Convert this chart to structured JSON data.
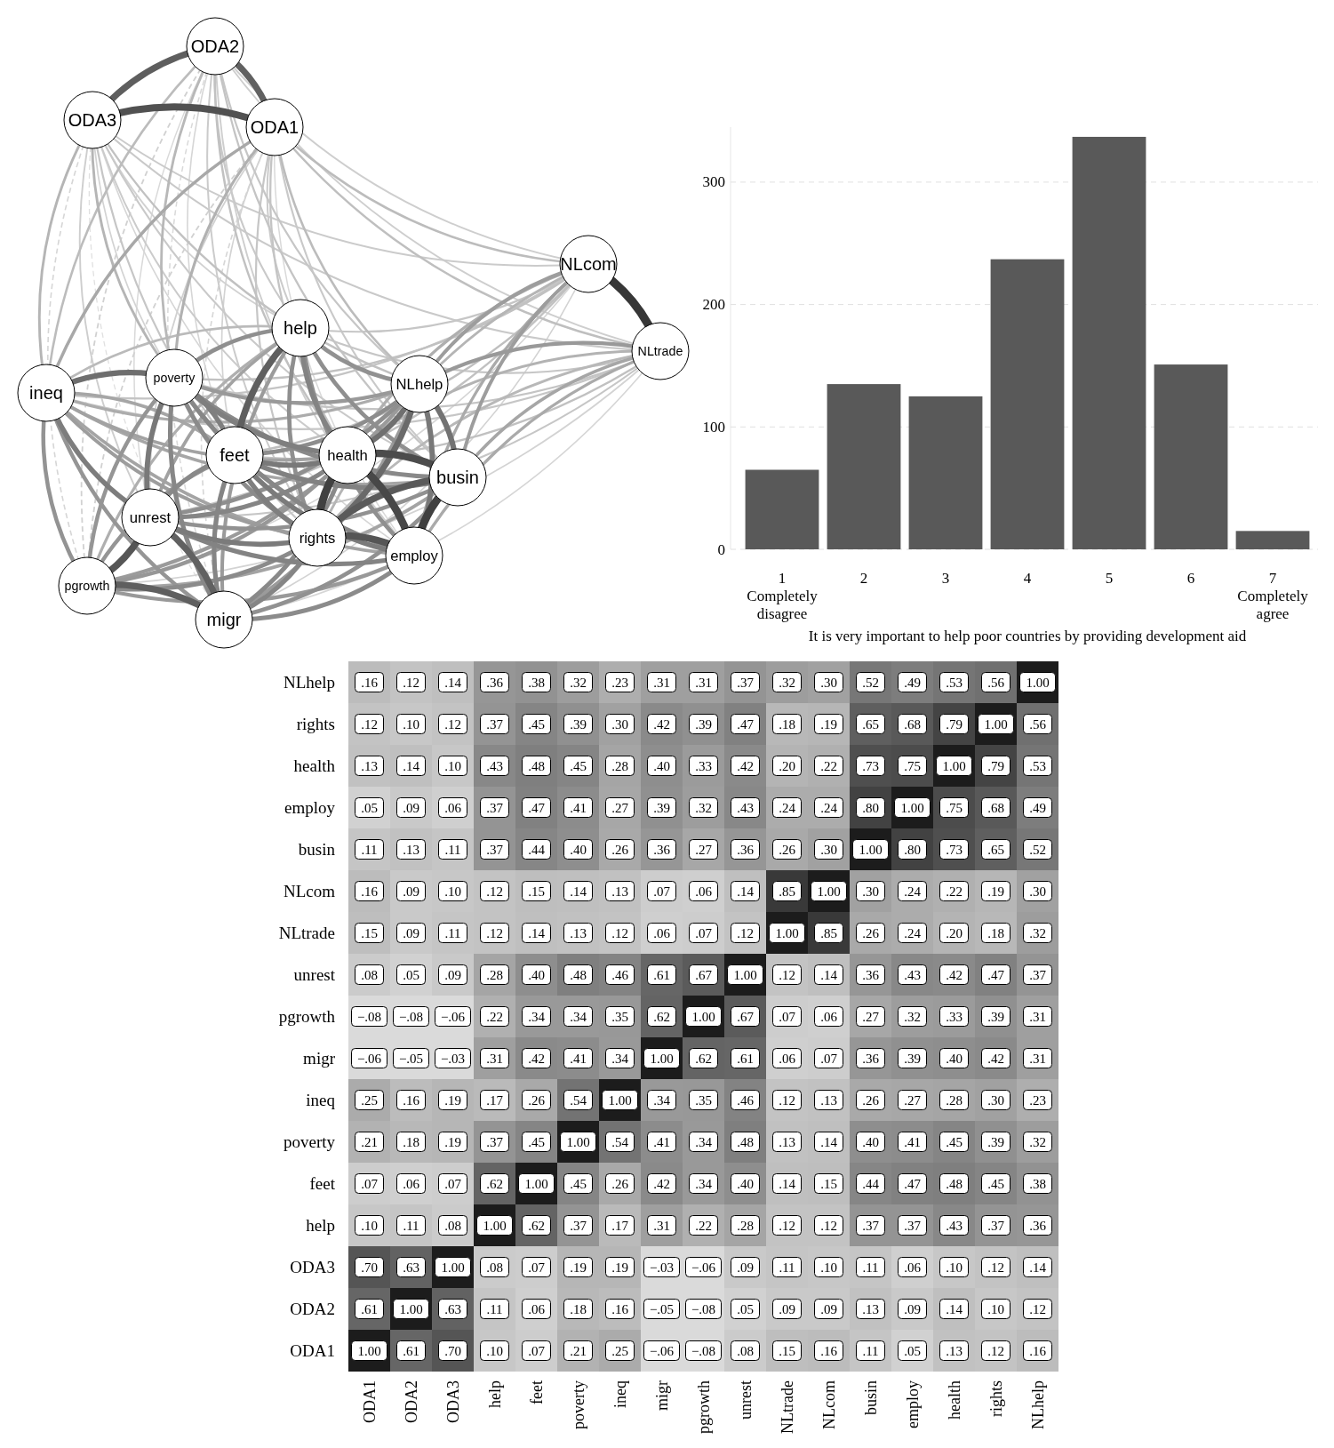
{
  "chart_data": [
    {
      "type": "other",
      "categories": [
        "ODA1",
        "ODA2",
        "ODA3",
        "help",
        "feet",
        "poverty",
        "ineq",
        "migr",
        "pgrowth",
        "unrest",
        "NLtrade",
        "NLcom",
        "busin",
        "employ",
        "health",
        "rights",
        "NLhelp"
      ]
    },
    {
      "type": "bar",
      "categories": [
        "1\nCompletely\ndisagree",
        "2",
        "3",
        "4",
        "5",
        "6",
        "7\nCompletely\nagree"
      ],
      "values": [
        65,
        135,
        125,
        237,
        337,
        151,
        15
      ],
      "color": "#595959",
      "ylim": [
        0,
        345
      ],
      "yticks": [
        0,
        100,
        200,
        300
      ],
      "grid": "y",
      "xlabel": "It is very important to help poor countries by providing development aid"
    },
    {
      "type": "heatmap",
      "categories": [
        "ODA1",
        "ODA2",
        "ODA3",
        "help",
        "feet",
        "poverty",
        "ineq",
        "migr",
        "pgrowth",
        "unrest",
        "NLtrade",
        "NLcom",
        "busin",
        "employ",
        "health",
        "rights",
        "NLhelp"
      ],
      "y_categories": [
        "NLhelp",
        "rights",
        "health",
        "employ",
        "busin",
        "NLcom",
        "NLtrade",
        "unrest",
        "pgrowth",
        "migr",
        "ineq",
        "poverty",
        "feet",
        "help",
        "ODA3",
        "ODA2",
        "ODA1"
      ],
      "cells": [
        [
          0.16,
          0.12,
          0.14,
          0.36,
          0.38,
          0.32,
          0.23,
          0.31,
          0.31,
          0.37,
          0.32,
          0.3,
          0.52,
          0.49,
          0.53,
          0.56,
          1.0
        ],
        [
          0.12,
          0.1,
          0.12,
          0.37,
          0.45,
          0.39,
          0.3,
          0.42,
          0.39,
          0.47,
          0.18,
          0.19,
          0.65,
          0.68,
          0.79,
          1.0,
          0.56
        ],
        [
          0.13,
          0.14,
          0.1,
          0.43,
          0.48,
          0.45,
          0.28,
          0.4,
          0.33,
          0.42,
          0.2,
          0.22,
          0.73,
          0.75,
          1.0,
          0.79,
          0.53
        ],
        [
          0.05,
          0.09,
          0.06,
          0.37,
          0.47,
          0.41,
          0.27,
          0.39,
          0.32,
          0.43,
          0.24,
          0.24,
          0.8,
          1.0,
          0.75,
          0.68,
          0.49
        ],
        [
          0.11,
          0.13,
          0.11,
          0.37,
          0.44,
          0.4,
          0.26,
          0.36,
          0.27,
          0.36,
          0.26,
          0.3,
          1.0,
          0.8,
          0.73,
          0.65,
          0.52
        ],
        [
          0.16,
          0.09,
          0.1,
          0.12,
          0.15,
          0.14,
          0.13,
          0.07,
          0.06,
          0.14,
          0.85,
          1.0,
          0.3,
          0.24,
          0.22,
          0.19,
          0.3
        ],
        [
          0.15,
          0.09,
          0.11,
          0.12,
          0.14,
          0.13,
          0.12,
          0.06,
          0.07,
          0.12,
          1.0,
          0.85,
          0.26,
          0.24,
          0.2,
          0.18,
          0.32
        ],
        [
          0.08,
          0.05,
          0.09,
          0.28,
          0.4,
          0.48,
          0.46,
          0.61,
          0.67,
          1.0,
          0.12,
          0.14,
          0.36,
          0.43,
          0.42,
          0.47,
          0.37
        ],
        [
          -0.08,
          -0.08,
          -0.06,
          0.22,
          0.34,
          0.34,
          0.35,
          0.62,
          1.0,
          0.67,
          0.07,
          0.06,
          0.27,
          0.32,
          0.33,
          0.39,
          0.31
        ],
        [
          -0.06,
          -0.05,
          -0.03,
          0.31,
          0.42,
          0.41,
          0.34,
          1.0,
          0.62,
          0.61,
          0.06,
          0.07,
          0.36,
          0.39,
          0.4,
          0.42,
          0.31
        ],
        [
          0.25,
          0.16,
          0.19,
          0.17,
          0.26,
          0.54,
          1.0,
          0.34,
          0.35,
          0.46,
          0.12,
          0.13,
          0.26,
          0.27,
          0.28,
          0.3,
          0.23
        ],
        [
          0.21,
          0.18,
          0.19,
          0.37,
          0.45,
          1.0,
          0.54,
          0.41,
          0.34,
          0.48,
          0.13,
          0.14,
          0.4,
          0.41,
          0.45,
          0.39,
          0.32
        ],
        [
          0.07,
          0.06,
          0.07,
          0.62,
          1.0,
          0.45,
          0.26,
          0.42,
          0.34,
          0.4,
          0.14,
          0.15,
          0.44,
          0.47,
          0.48,
          0.45,
          0.38
        ],
        [
          0.1,
          0.11,
          0.08,
          1.0,
          0.62,
          0.37,
          0.17,
          0.31,
          0.22,
          0.28,
          0.12,
          0.12,
          0.37,
          0.37,
          0.43,
          0.37,
          0.36
        ],
        [
          0.7,
          0.63,
          1.0,
          0.08,
          0.07,
          0.19,
          0.19,
          -0.03,
          -0.06,
          0.09,
          0.11,
          0.1,
          0.11,
          0.06,
          0.1,
          0.12,
          0.14
        ],
        [
          0.61,
          1.0,
          0.63,
          0.11,
          0.06,
          0.18,
          0.16,
          -0.05,
          -0.08,
          0.05,
          0.09,
          0.09,
          0.13,
          0.09,
          0.14,
          0.1,
          0.12
        ],
        [
          1.0,
          0.61,
          0.7,
          0.1,
          0.07,
          0.21,
          0.25,
          -0.06,
          -0.08,
          0.08,
          0.15,
          0.16,
          0.11,
          0.05,
          0.13,
          0.12,
          0.16
        ]
      ],
      "cell_labels": [
        [
          ".16",
          ".12",
          ".14",
          ".36",
          ".38",
          ".32",
          ".23",
          ".31",
          ".31",
          ".37",
          ".32",
          ".30",
          ".52",
          ".49",
          ".53",
          ".56",
          "1.00"
        ],
        [
          ".12",
          ".10",
          ".12",
          ".37",
          ".45",
          ".39",
          ".30",
          ".42",
          ".39",
          ".47",
          ".18",
          ".19",
          ".65",
          ".68",
          ".79",
          "1.00",
          ".56"
        ],
        [
          ".13",
          ".14",
          ".10",
          ".43",
          ".48",
          ".45",
          ".28",
          ".40",
          ".33",
          ".42",
          ".20",
          ".22",
          ".73",
          ".75",
          "1.00",
          ".79",
          ".53"
        ],
        [
          ".05",
          ".09",
          ".06",
          ".37",
          ".47",
          ".41",
          ".27",
          ".39",
          ".32",
          ".43",
          ".24",
          ".24",
          ".80",
          "1.00",
          ".75",
          ".68",
          ".49"
        ],
        [
          ".11",
          ".13",
          ".11",
          ".37",
          ".44",
          ".40",
          ".26",
          ".36",
          ".27",
          ".36",
          ".26",
          ".30",
          "1.00",
          ".80",
          ".73",
          ".65",
          ".52"
        ],
        [
          ".16",
          ".09",
          ".10",
          ".12",
          ".15",
          ".14",
          ".13",
          ".07",
          ".06",
          ".14",
          ".85",
          "1.00",
          ".30",
          ".24",
          ".22",
          ".19",
          ".30"
        ],
        [
          ".15",
          ".09",
          ".11",
          ".12",
          ".14",
          ".13",
          ".12",
          ".06",
          ".07",
          ".12",
          "1.00",
          ".85",
          ".26",
          ".24",
          ".20",
          ".18",
          ".32"
        ],
        [
          ".08",
          ".05",
          ".09",
          ".28",
          ".40",
          ".48",
          ".46",
          ".61",
          ".67",
          "1.00",
          ".12",
          ".14",
          ".36",
          ".43",
          ".42",
          ".47",
          ".37"
        ],
        [
          "−.08",
          "−.08",
          "−.06",
          ".22",
          ".34",
          ".34",
          ".35",
          ".62",
          "1.00",
          ".67",
          ".07",
          ".06",
          ".27",
          ".32",
          ".33",
          ".39",
          ".31"
        ],
        [
          "−.06",
          "−.05",
          "−.03",
          ".31",
          ".42",
          ".41",
          ".34",
          "1.00",
          ".62",
          ".61",
          ".06",
          ".07",
          ".36",
          ".39",
          ".40",
          ".42",
          ".31"
        ],
        [
          ".25",
          ".16",
          ".19",
          ".17",
          ".26",
          ".54",
          "1.00",
          ".34",
          ".35",
          ".46",
          ".12",
          ".13",
          ".26",
          ".27",
          ".28",
          ".30",
          ".23"
        ],
        [
          ".21",
          ".18",
          ".19",
          ".37",
          ".45",
          "1.00",
          ".54",
          ".41",
          ".34",
          ".48",
          ".13",
          ".14",
          ".40",
          ".41",
          ".45",
          ".39",
          ".32"
        ],
        [
          ".07",
          ".06",
          ".07",
          ".62",
          "1.00",
          ".45",
          ".26",
          ".42",
          ".34",
          ".40",
          ".14",
          ".15",
          ".44",
          ".47",
          ".48",
          ".45",
          ".38"
        ],
        [
          ".10",
          ".11",
          ".08",
          "1.00",
          ".62",
          ".37",
          ".17",
          ".31",
          ".22",
          ".28",
          ".12",
          ".12",
          ".37",
          ".37",
          ".43",
          ".37",
          ".36"
        ],
        [
          ".70",
          ".63",
          "1.00",
          ".08",
          ".07",
          ".19",
          ".19",
          "−.03",
          "−.06",
          ".09",
          ".11",
          ".10",
          ".11",
          ".06",
          ".10",
          ".12",
          ".14"
        ],
        [
          ".61",
          "1.00",
          ".63",
          ".11",
          ".06",
          ".18",
          ".16",
          "−.05",
          "−.08",
          ".05",
          ".09",
          ".09",
          ".13",
          ".09",
          ".14",
          ".10",
          ".12"
        ],
        [
          "1.00",
          ".61",
          ".70",
          ".10",
          ".07",
          ".21",
          ".25",
          "−.06",
          "−.08",
          ".08",
          ".15",
          ".16",
          ".11",
          ".05",
          ".13",
          ".12",
          ".16"
        ]
      ]
    }
  ]
}
